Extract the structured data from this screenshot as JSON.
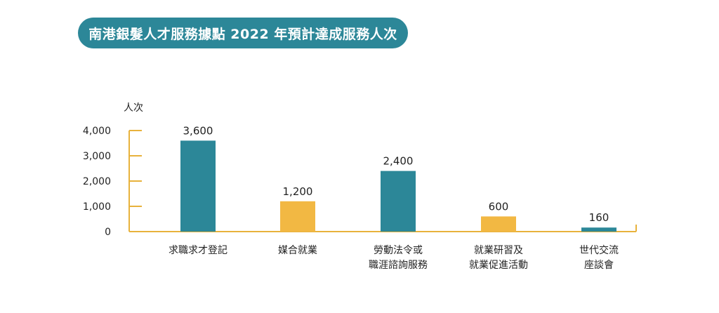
{
  "title": "南港銀髮人才服務據點 2022 年預計達成服務人次",
  "colors": {
    "teal": "#2c8798",
    "gold": "#f2b843",
    "axis": "#e8b23c",
    "text": "#222222"
  },
  "chart_data": {
    "type": "bar",
    "ylabel": "人次",
    "ylim": [
      0,
      4000
    ],
    "yticks": [
      0,
      1000,
      2000,
      3000,
      4000
    ],
    "ytick_labels": [
      "0",
      "1,000",
      "2,000",
      "3,000",
      "4,000"
    ],
    "categories": [
      [
        "求職求才登記"
      ],
      [
        "媒合就業"
      ],
      [
        "勞動法令或",
        "職涯諮詢服務"
      ],
      [
        "就業研習及",
        "就業促進活動"
      ],
      [
        "世代交流",
        "座談會"
      ]
    ],
    "values": [
      3600,
      1200,
      2400,
      600,
      160
    ],
    "value_labels": [
      "3,600",
      "1,200",
      "2,400",
      "600",
      "160"
    ],
    "bar_colors": [
      "teal",
      "gold",
      "teal",
      "gold",
      "teal"
    ]
  }
}
